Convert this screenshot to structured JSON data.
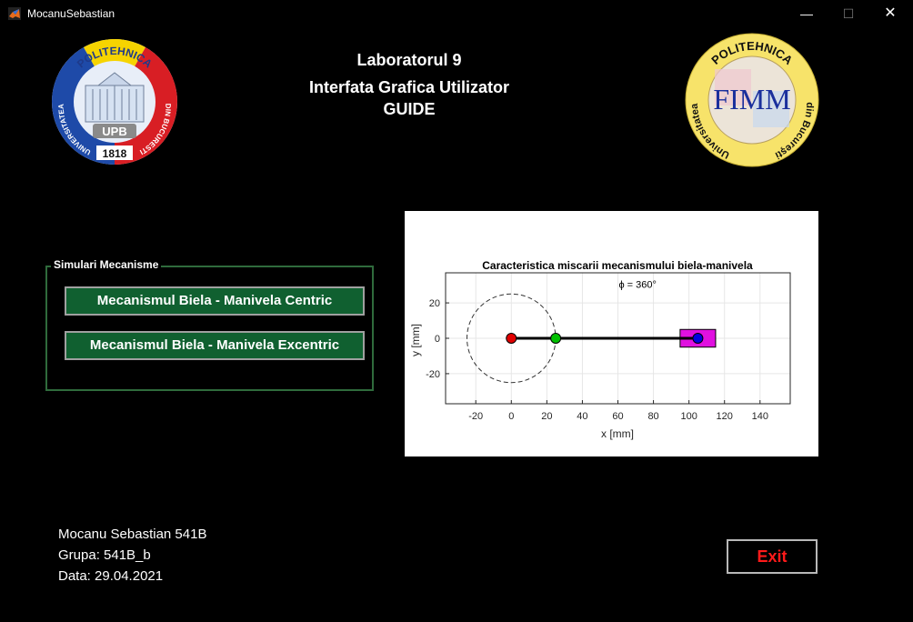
{
  "window": {
    "title": "MocanuSebastian",
    "controls": {
      "minimize": "—",
      "maximize": "☐",
      "close": "✕"
    }
  },
  "header": {
    "line1": "Laboratorul 9",
    "line2": "Interfata Grafica Utilizator",
    "line3": "GUIDE"
  },
  "logos": {
    "upb": {
      "top_text": "POLITEHNICA",
      "left_text": "UNIVERSITATEA",
      "right_text": "DIN BUCURESTI",
      "badge": "UPB",
      "year": "1818",
      "colors": {
        "blue": "#1e4aa8",
        "yellow": "#f6d400",
        "red": "#d81e24"
      }
    },
    "fimm": {
      "top_text": "POLITEHNICA",
      "left_text": "Universitatea",
      "right_text": "din Bucureşti",
      "center": "FIMM",
      "colors": {
        "ring": "#f7e36a",
        "center": "#1a2f9c"
      }
    }
  },
  "panel": {
    "title": "Simulari Mecanisme",
    "buttons": [
      {
        "label": "Mecanismul Biela - Manivela Centric"
      },
      {
        "label": "Mecanismul Biela - Manivela Excentric"
      }
    ]
  },
  "plot": {
    "title": "Caracteristica miscarii mecanismului biela-manivela",
    "annotation": "ϕ = 360°",
    "xlabel": "x [mm]",
    "ylabel": "y [mm]",
    "xticks": [
      "-20",
      "0",
      "20",
      "40",
      "60",
      "80",
      "100",
      "120",
      "140"
    ],
    "yticks": [
      "20",
      "0",
      "-20"
    ],
    "xlim": [
      -37,
      157
    ],
    "ylim": [
      -37,
      37
    ],
    "crank_circle": {
      "cx": 0,
      "cy": 0,
      "r": 25
    },
    "joints": [
      {
        "name": "O",
        "x": 0,
        "y": 0,
        "color": "#e00000"
      },
      {
        "name": "A",
        "x": 25,
        "y": 0,
        "color": "#00c000"
      },
      {
        "name": "B",
        "x": 105,
        "y": 0,
        "color": "#0000e0"
      }
    ],
    "slider": {
      "x0": 95,
      "x1": 115,
      "y0": -5,
      "y1": 5,
      "color": "#e010e0"
    }
  },
  "info": {
    "name": "Mocanu Sebastian 541B",
    "group": "Grupa: 541B_b",
    "date": "Data: 29.04.2021"
  },
  "exit_label": "Exit"
}
